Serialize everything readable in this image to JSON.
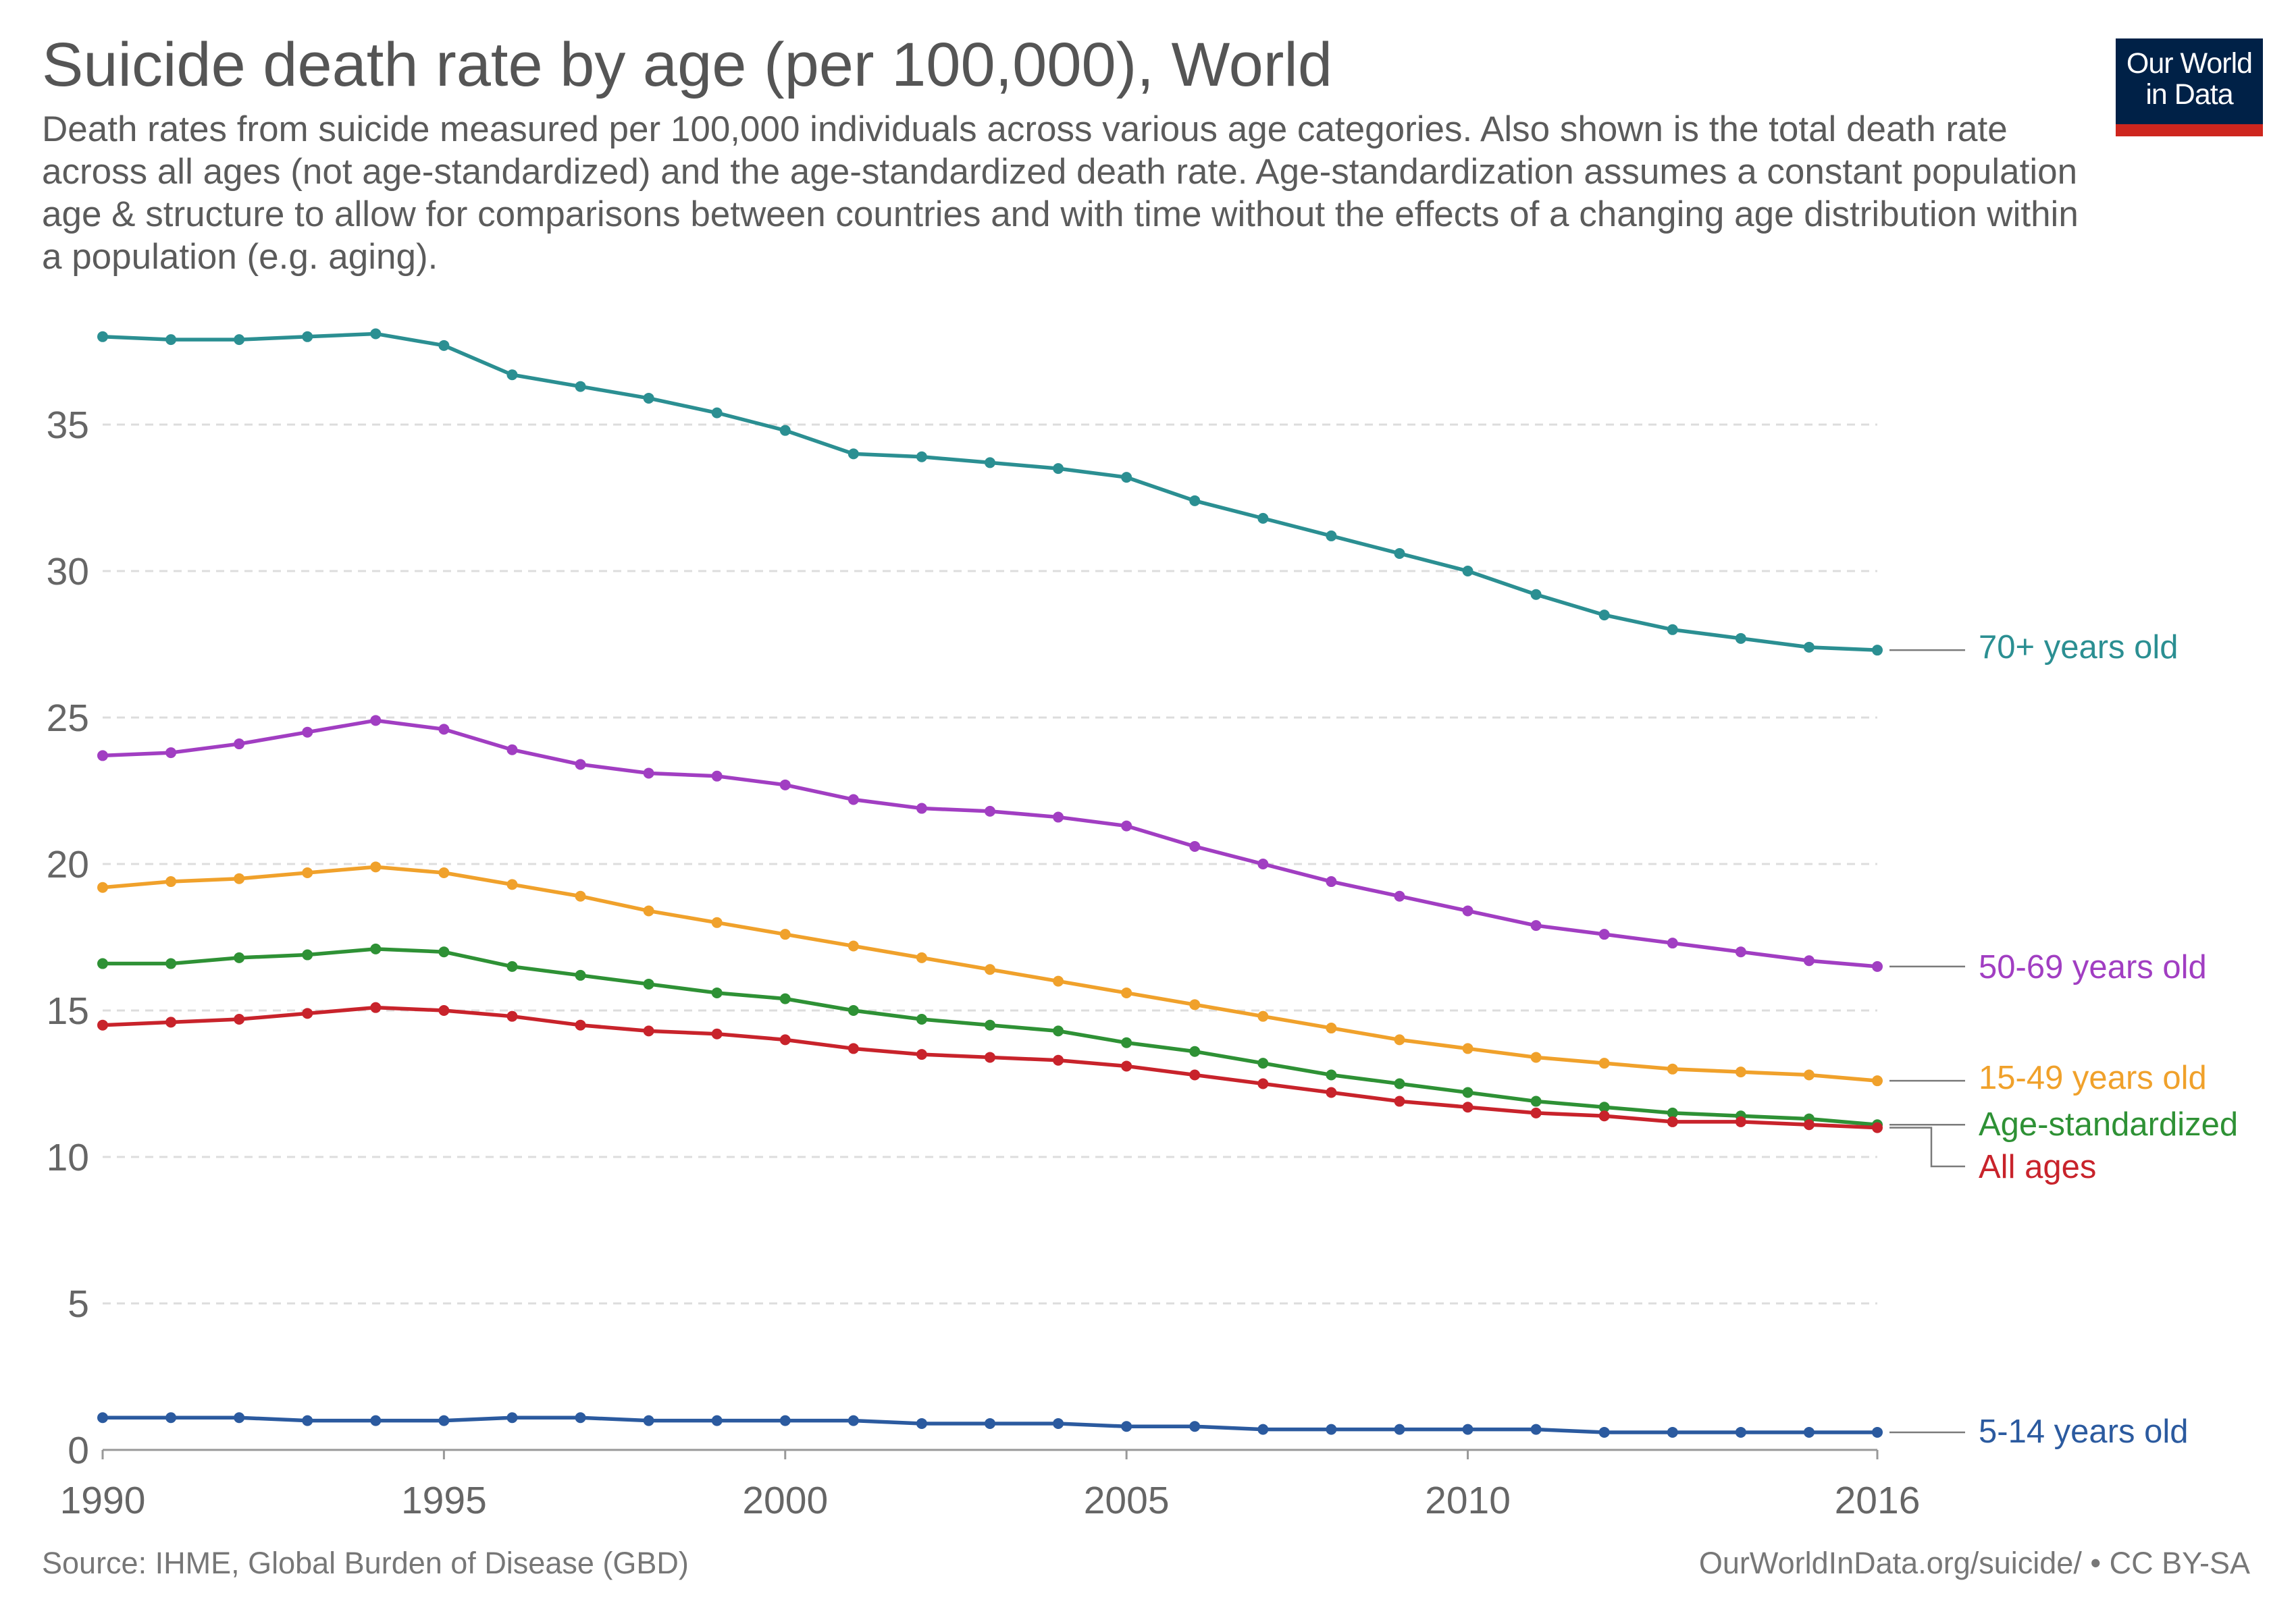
{
  "header": {
    "title": "Suicide death rate by age (per 100,000), World",
    "subtitle": "Death rates from suicide measured per 100,000 individuals across various age categories. Also shown is the total death rate across all ages (not age-standardized) and the age-standardized death rate. Age-standardization assumes a constant population age & structure to allow for comparisons between countries and with time without the effects of a changing age distribution within a population (e.g. aging).",
    "logo_line1": "Our World",
    "logo_line2": "in Data"
  },
  "footer": {
    "source": "Source: IHME, Global Burden of Disease (GBD)",
    "license": "OurWorldInData.org/suicide/ • CC BY-SA"
  },
  "colors": {
    "logo_bg": "#002147",
    "logo_bar": "#ce261e",
    "grid": "#dddddd",
    "axis": "#999999"
  },
  "chart_data": {
    "type": "line",
    "title": "Suicide death rate by age (per 100,000), World",
    "xlabel": "",
    "ylabel": "",
    "xlim": [
      1990,
      2016
    ],
    "ylim": [
      0,
      38
    ],
    "x_ticks": [
      1990,
      1995,
      2000,
      2005,
      2010,
      2016
    ],
    "y_ticks": [
      0,
      5,
      10,
      15,
      20,
      25,
      30,
      35
    ],
    "grid": "horizontal dashed",
    "legend": "line-end labels, right",
    "x": [
      1990,
      1991,
      1992,
      1993,
      1994,
      1995,
      1996,
      1997,
      1998,
      1999,
      2000,
      2001,
      2002,
      2003,
      2004,
      2005,
      2006,
      2007,
      2008,
      2009,
      2010,
      2011,
      2012,
      2013,
      2014,
      2015,
      2016
    ],
    "series": [
      {
        "name": "70+ years old",
        "color": "#2b8f92",
        "values": [
          38.0,
          37.9,
          37.9,
          38.0,
          38.1,
          37.7,
          36.7,
          36.3,
          35.9,
          35.4,
          34.8,
          34.0,
          33.9,
          33.7,
          33.5,
          33.2,
          32.4,
          31.8,
          31.2,
          30.6,
          30.0,
          29.2,
          28.5,
          28.0,
          27.7,
          27.4,
          27.3
        ]
      },
      {
        "name": "50-69 years old",
        "color": "#a13ec2",
        "values": [
          23.7,
          23.8,
          24.1,
          24.5,
          24.9,
          24.6,
          23.9,
          23.4,
          23.1,
          23.0,
          22.7,
          22.2,
          21.9,
          21.8,
          21.6,
          21.3,
          20.6,
          20.0,
          19.4,
          18.9,
          18.4,
          17.9,
          17.6,
          17.3,
          17.0,
          16.7,
          16.5
        ]
      },
      {
        "name": "15-49 years old",
        "color": "#f0a12b",
        "values": [
          19.2,
          19.4,
          19.5,
          19.7,
          19.9,
          19.7,
          19.3,
          18.9,
          18.4,
          18.0,
          17.6,
          17.2,
          16.8,
          16.4,
          16.0,
          15.6,
          15.2,
          14.8,
          14.4,
          14.0,
          13.7,
          13.4,
          13.2,
          13.0,
          12.9,
          12.8,
          12.6
        ]
      },
      {
        "name": "Age-standardized",
        "color": "#2e9135",
        "values": [
          16.6,
          16.6,
          16.8,
          16.9,
          17.1,
          17.0,
          16.5,
          16.2,
          15.9,
          15.6,
          15.4,
          15.0,
          14.7,
          14.5,
          14.3,
          13.9,
          13.6,
          13.2,
          12.8,
          12.5,
          12.2,
          11.9,
          11.7,
          11.5,
          11.4,
          11.3,
          11.1
        ]
      },
      {
        "name": "All ages",
        "color": "#c8232b",
        "values": [
          14.5,
          14.6,
          14.7,
          14.9,
          15.1,
          15.0,
          14.8,
          14.5,
          14.3,
          14.2,
          14.0,
          13.7,
          13.5,
          13.4,
          13.3,
          13.1,
          12.8,
          12.5,
          12.2,
          11.9,
          11.7,
          11.5,
          11.4,
          11.2,
          11.2,
          11.1,
          11.0
        ]
      },
      {
        "name": "5-14 years old",
        "color": "#2b5a9f",
        "values": [
          1.1,
          1.1,
          1.1,
          1.0,
          1.0,
          1.0,
          1.1,
          1.1,
          1.0,
          1.0,
          1.0,
          1.0,
          0.9,
          0.9,
          0.9,
          0.8,
          0.8,
          0.7,
          0.7,
          0.7,
          0.7,
          0.7,
          0.6,
          0.6,
          0.6,
          0.6,
          0.6
        ]
      }
    ]
  }
}
